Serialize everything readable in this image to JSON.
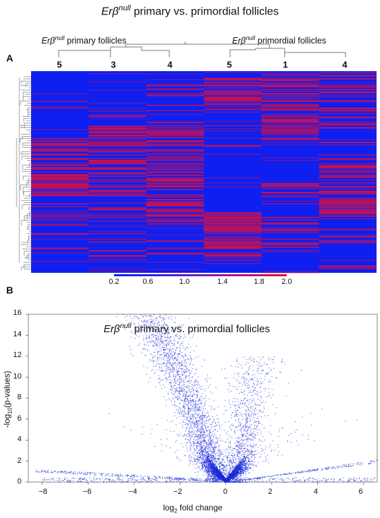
{
  "title": {
    "prefix": "Erβ",
    "sup": "null",
    "rest": " primary  vs. primordial follicles"
  },
  "panel_a": {
    "letter": "A",
    "group_left": {
      "prefix": "Erβ",
      "sup": "null",
      "rest": " primary follicles"
    },
    "group_right": {
      "prefix": "Erβ",
      "sup": "null",
      "rest": " primordial follicles"
    },
    "columns": [
      "5",
      "3",
      "4",
      "5",
      "1",
      "4"
    ],
    "colorbar_ticks": [
      "0.2",
      "0.6",
      "1.0",
      "1.4",
      "1.8",
      "2.0"
    ],
    "colors": {
      "low": "#0f1ff0",
      "high": "#e0103a"
    }
  },
  "panel_b": {
    "letter": "B",
    "title": {
      "prefix": "Erβ",
      "sup": "null",
      "rest": " primary  vs. primordial follicles"
    },
    "xlabel": {
      "a": "log",
      "sub": "2",
      "b": " fold change"
    },
    "ylabel": {
      "a": "-log",
      "sub": "10",
      "b": "(p-values)"
    },
    "x_ticks": [
      "−8",
      "−6",
      "−4",
      "−2",
      "0",
      "2",
      "4",
      "6"
    ],
    "y_ticks": [
      "0",
      "2",
      "4",
      "6",
      "8",
      "10",
      "12",
      "14",
      "16"
    ],
    "point_color": "#1a2ad8"
  },
  "chart_data": [
    {
      "type": "heatmap",
      "title": "Erβnull primary  vs. primordial follicles",
      "groups": [
        "Erβnull primary follicles",
        "Erβnull primordial follicles"
      ],
      "columns": [
        "5",
        "3",
        "4",
        "5",
        "1",
        "4"
      ],
      "color_scale": {
        "min": 0.2,
        "max": 2.0,
        "ticks": [
          0.2,
          0.6,
          1.0,
          1.4,
          1.8,
          2.0
        ],
        "low_color": "#0f1ff0",
        "high_color": "#e0103a"
      },
      "dendrogram": true
    },
    {
      "type": "scatter",
      "title": "Erβnull primary  vs. primordial follicles",
      "xlabel": "log2 fold change",
      "ylabel": "-log10(p-values)",
      "xlim": [
        -8.6,
        6.6
      ],
      "ylim": [
        0,
        16
      ],
      "x_ticks": [
        -8,
        -6,
        -4,
        -2,
        0,
        2,
        4,
        6
      ],
      "y_ticks": [
        0,
        2,
        4,
        6,
        8,
        10,
        12,
        14,
        16
      ],
      "shape": "volcano",
      "color": "#1a2ad8"
    }
  ]
}
